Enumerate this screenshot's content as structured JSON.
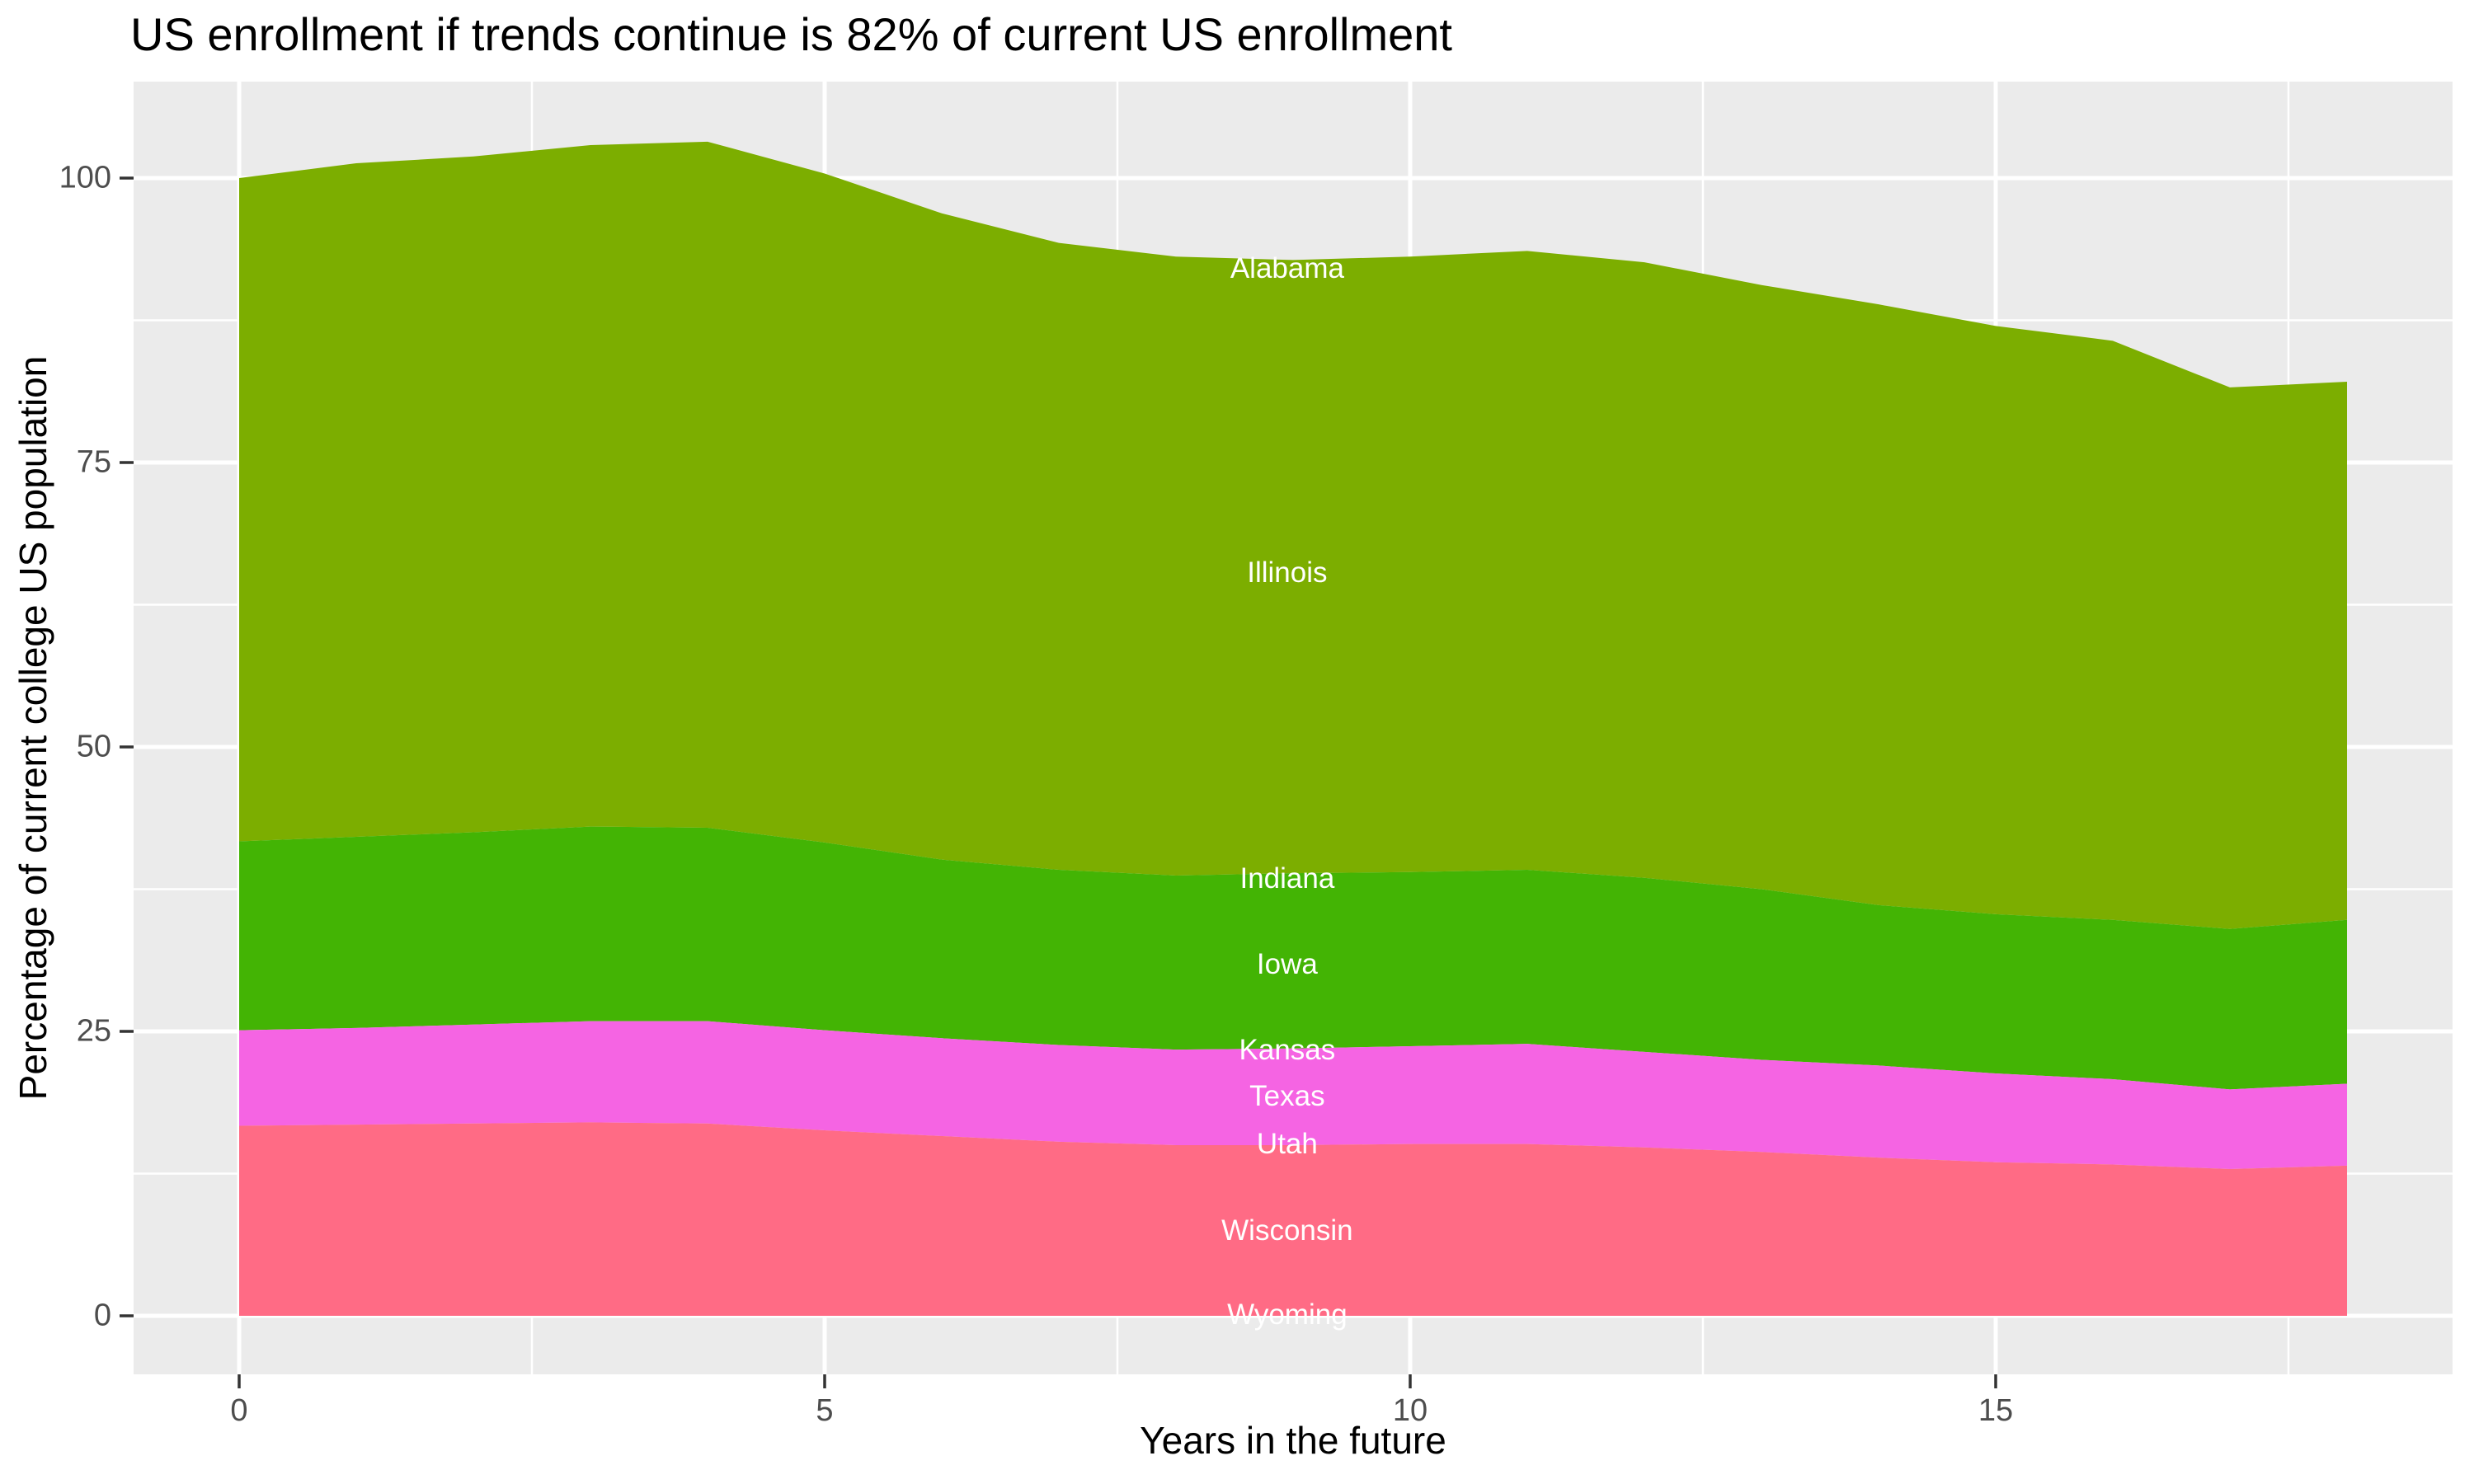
{
  "title": "US enrollment if trends continue is 82% of current US enrollment",
  "axes": {
    "x": {
      "title": "Years in the future",
      "range": [
        -0.9,
        18.9
      ],
      "ticks": [
        {
          "value": 0,
          "label": "0"
        },
        {
          "value": 5,
          "label": "5"
        },
        {
          "value": 10,
          "label": "10"
        },
        {
          "value": 15,
          "label": "15"
        }
      ],
      "minor_gridlines": [
        2.5,
        7.5,
        12.5,
        17.5
      ]
    },
    "y": {
      "title": "Percentage of current college US population",
      "range": [
        -5.2,
        108.4
      ],
      "ticks": [
        {
          "value": 0,
          "label": "0"
        },
        {
          "value": 25,
          "label": "25"
        },
        {
          "value": 50,
          "label": "50"
        },
        {
          "value": 75,
          "label": "75"
        },
        {
          "value": 100,
          "label": "100"
        }
      ],
      "minor_gridlines": [
        12.5,
        37.5,
        62.5,
        87.5
      ]
    }
  },
  "colors": {
    "panel_background": "#EBEBEB",
    "gridline": "#FFFFFF",
    "tick": "#333333",
    "tick_label": "#4D4D4D",
    "title": "#000000",
    "state_label": "#FFFFFF"
  },
  "chart_data": {
    "type": "area",
    "stacked": true,
    "title": "US enrollment if trends continue is 82% of current US enrollment",
    "xlabel": "Years in the future",
    "ylabel": "Percentage of current college US population",
    "xlim": [
      0,
      18
    ],
    "ylim_ticks": [
      0,
      100
    ],
    "grid": "major-and-minor",
    "legend_position": "none",
    "x": [
      0,
      1,
      2,
      3,
      4,
      5,
      6,
      7,
      8,
      9,
      10,
      11,
      12,
      13,
      14,
      15,
      16,
      17,
      18
    ],
    "bands": [
      {
        "name": "Alabama + Illinois",
        "states": [
          "Alabama",
          "Illinois"
        ],
        "color": "#7CAE00",
        "top": [
          100.0,
          101.3,
          101.9,
          102.9,
          103.2,
          100.4,
          96.9,
          94.3,
          93.1,
          92.8,
          93.1,
          93.6,
          92.6,
          90.6,
          88.9,
          87.0,
          85.7,
          81.6,
          82.1
        ]
      },
      {
        "name": "Indiana + Iowa",
        "states": [
          "Indiana",
          "Iowa"
        ],
        "color": "#43B404",
        "top": [
          41.7,
          42.1,
          42.5,
          43.0,
          42.9,
          41.6,
          40.1,
          39.2,
          38.7,
          38.9,
          39.0,
          39.2,
          38.5,
          37.5,
          36.1,
          35.3,
          34.8,
          34.0,
          34.8
        ]
      },
      {
        "name": "Kansas + Texas",
        "states": [
          "Kansas",
          "Texas"
        ],
        "color": "#F564E3",
        "top": [
          25.1,
          25.3,
          25.6,
          25.9,
          25.9,
          25.1,
          24.4,
          23.8,
          23.4,
          23.5,
          23.7,
          23.9,
          23.2,
          22.5,
          22.0,
          21.3,
          20.8,
          19.9,
          20.4
        ]
      },
      {
        "name": "Utah + Wisconsin + Wyoming",
        "states": [
          "Utah",
          "Wisconsin",
          "Wyoming"
        ],
        "color": "#FF6B85",
        "top": [
          16.7,
          16.8,
          16.9,
          17.0,
          16.9,
          16.3,
          15.8,
          15.3,
          15.0,
          15.0,
          15.1,
          15.1,
          14.8,
          14.4,
          13.9,
          13.5,
          13.3,
          12.9,
          13.2
        ]
      }
    ],
    "baseline": 0,
    "state_labels": [
      {
        "text": "Alabama",
        "x": 8.95,
        "y": 92.0
      },
      {
        "text": "Illinois",
        "x": 8.95,
        "y": 65.3
      },
      {
        "text": "Indiana",
        "x": 8.95,
        "y": 38.4
      },
      {
        "text": "Iowa",
        "x": 8.95,
        "y": 30.9
      },
      {
        "text": "Kansas",
        "x": 8.95,
        "y": 23.3
      },
      {
        "text": "Texas",
        "x": 8.95,
        "y": 19.3
      },
      {
        "text": "Utah",
        "x": 8.95,
        "y": 15.1
      },
      {
        "text": "Wisconsin",
        "x": 8.95,
        "y": 7.5
      },
      {
        "text": "Wyoming",
        "x": 8.95,
        "y": 0.1
      }
    ]
  }
}
